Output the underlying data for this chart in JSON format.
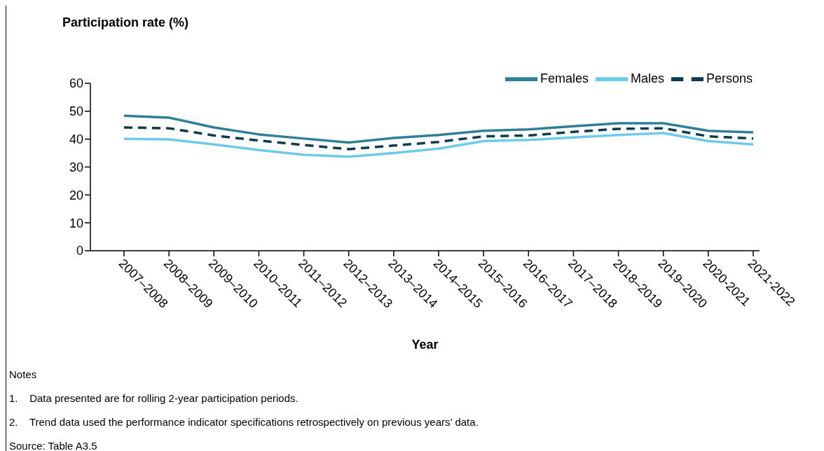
{
  "chart_data": {
    "type": "line",
    "ylabel": "Participation rate (%)",
    "xlabel": "Year",
    "categories": [
      "2007–2008",
      "2008–2009",
      "2009–2010",
      "2010–2011",
      "2011–2012",
      "2012–2013",
      "2013–2014",
      "2014–2015",
      "2015–2016",
      "2016–2017",
      "2017–2018",
      "2018–2019",
      "2019–2020",
      "2020-2021",
      "2021-2022"
    ],
    "series": [
      {
        "name": "Females",
        "color": "#2e7f99",
        "line_style": "solid",
        "values": [
          48.4,
          47.7,
          44.2,
          41.7,
          40.2,
          38.8,
          40.4,
          41.5,
          43.0,
          43.5,
          44.6,
          45.7,
          45.7,
          43.0,
          42.4
        ]
      },
      {
        "name": "Males",
        "color": "#6ccbea",
        "line_style": "solid",
        "values": [
          40.1,
          39.9,
          38.1,
          36.1,
          34.4,
          33.7,
          35.0,
          36.6,
          39.3,
          39.7,
          40.6,
          41.5,
          42.2,
          39.3,
          38.1
        ]
      },
      {
        "name": "Persons",
        "color": "#0d3b4f",
        "line_style": "dashed",
        "values": [
          44.2,
          43.9,
          41.3,
          39.5,
          37.9,
          36.4,
          37.7,
          39.0,
          41.0,
          41.3,
          42.6,
          43.7,
          43.9,
          41.0,
          40.2
        ]
      }
    ],
    "ylim": [
      0,
      60
    ],
    "yticks": [
      0,
      10,
      20,
      30,
      40,
      50,
      60
    ],
    "grid": false,
    "legend": "top right",
    "marker": "none",
    "annotations": [
      "Notes",
      "1.    Data presented are for rolling 2-year participation periods.",
      "2.    Trend data used the performance indicator specifications retrospectively on previous years’ data.",
      "Source: Table A3.5"
    ]
  }
}
